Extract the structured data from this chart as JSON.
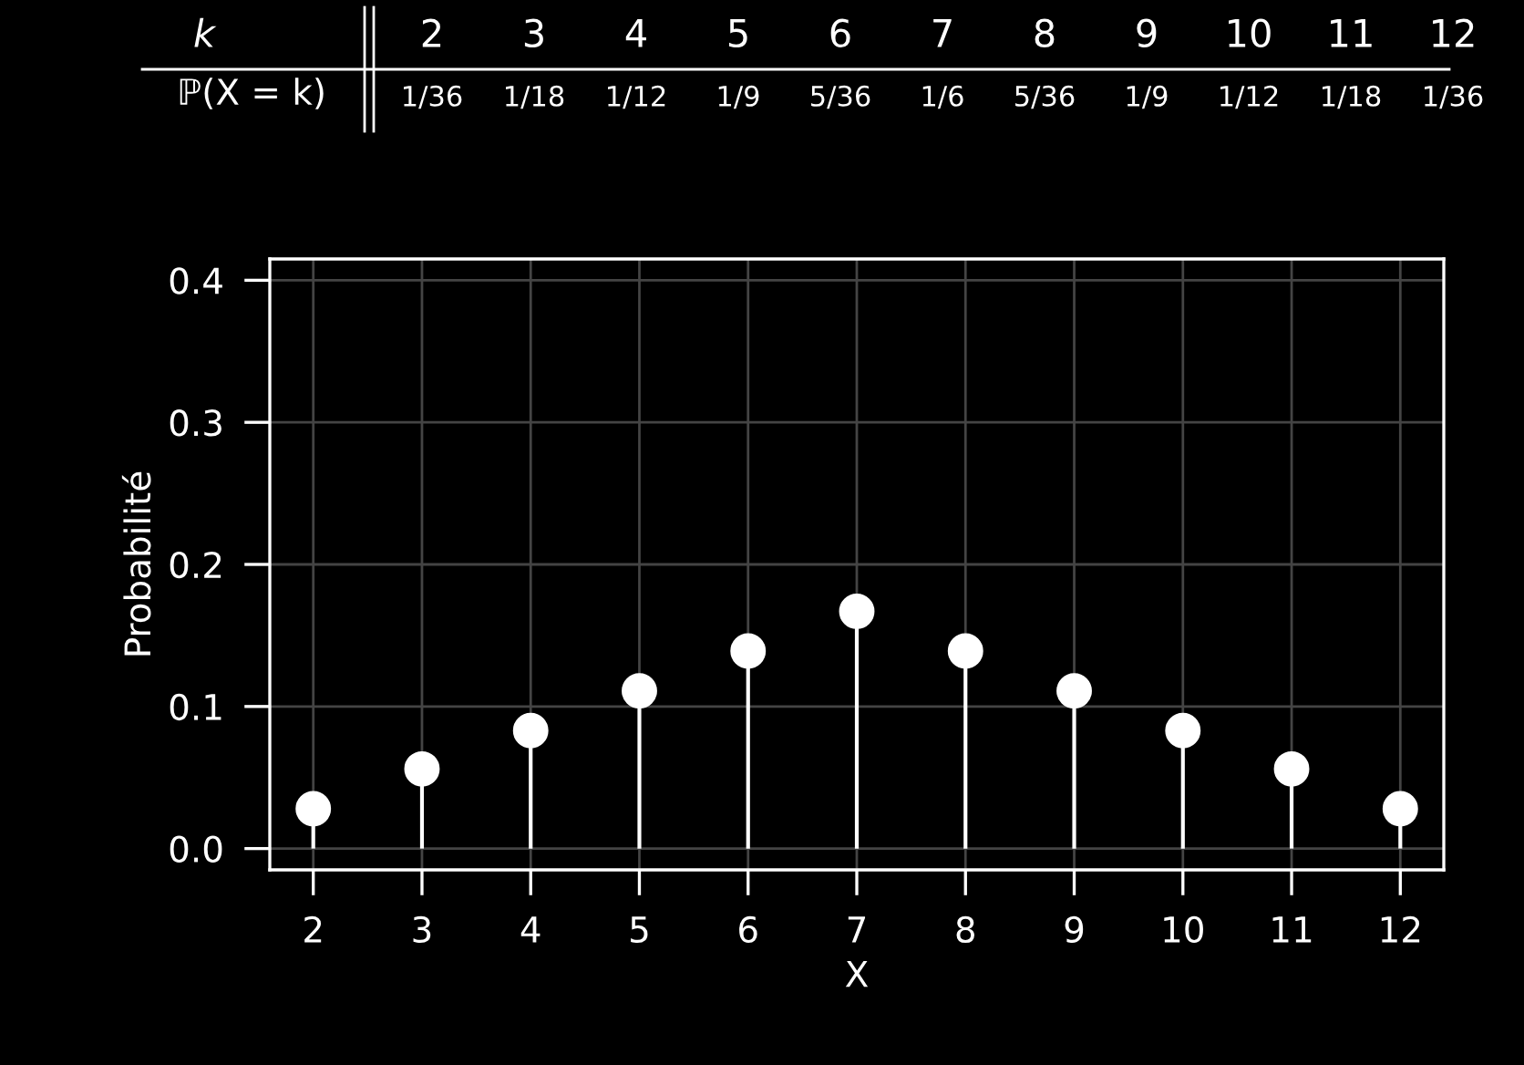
{
  "chart_data": {
    "type": "lollipop",
    "xlabel": "X",
    "ylabel": "Probabilité",
    "annotations": [
      "k",
      "ℙ(X = k)",
      "2",
      "3",
      "4",
      "5",
      "6",
      "7",
      "8",
      "9",
      "10",
      "11",
      "12",
      "1/36",
      "1/18",
      "1/12",
      "1/9",
      "5/36",
      "1/6",
      "5/36",
      "1/9",
      "1/12",
      "1/18",
      "1/36"
    ],
    "x": [
      2,
      3,
      4,
      5,
      6,
      7,
      8,
      9,
      10,
      11,
      12
    ],
    "values": [
      0.028,
      0.056,
      0.083,
      0.111,
      0.139,
      0.167,
      0.139,
      0.111,
      0.083,
      0.056,
      0.028
    ],
    "color": "#ffffff",
    "marker": "circle",
    "grid": true,
    "xlim": [
      1.6,
      12.4
    ],
    "xticks": [
      2,
      3,
      4,
      5,
      6,
      7,
      8,
      9,
      10,
      11,
      12
    ],
    "ylim": [
      -0.015,
      0.415
    ],
    "yticks": [
      {
        "value": 0,
        "label": "0.0"
      },
      {
        "value": 0.1,
        "label": "0.1"
      },
      {
        "value": 0.2,
        "label": "0.2"
      },
      {
        "value": 0.3,
        "label": "0.3"
      },
      {
        "value": 0.4,
        "label": "0.4"
      }
    ]
  }
}
